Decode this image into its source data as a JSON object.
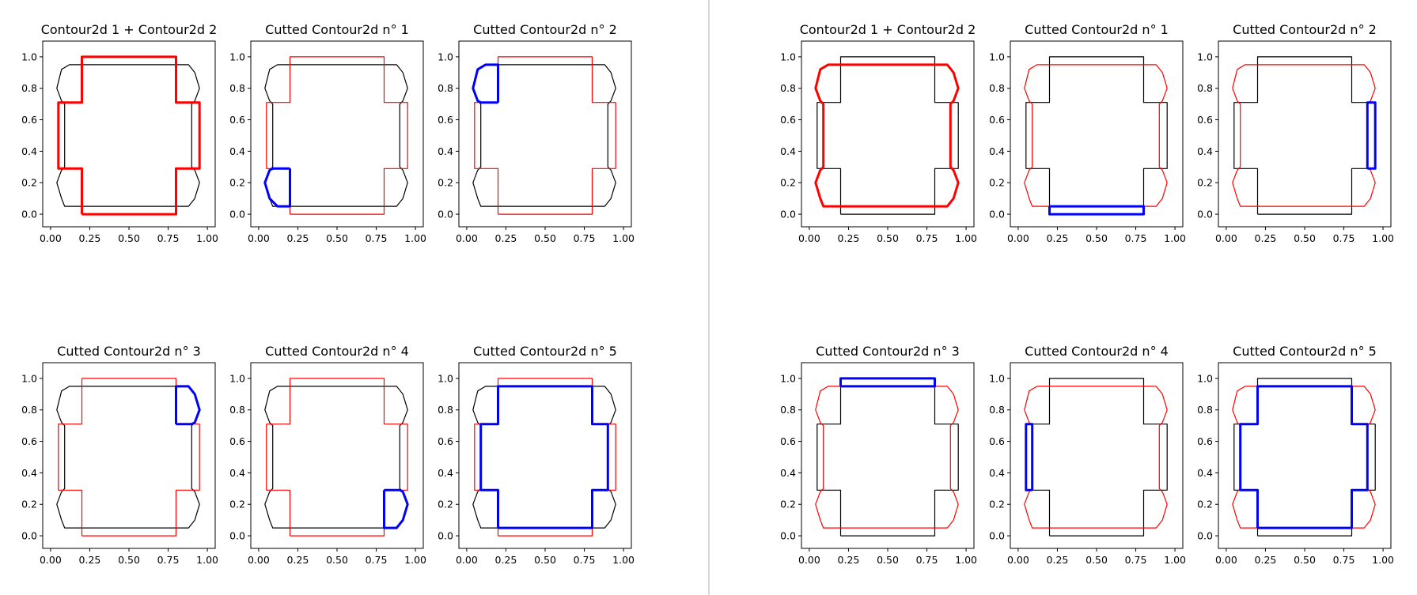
{
  "colors": {
    "contour_first": "#000000",
    "contour_second": "#ff0000",
    "cut_piece": "#0000ff",
    "separator": "#c8c8c8",
    "axes_frame": "#000000"
  },
  "chart_data": {
    "type": "line",
    "layout": "two groups of six subplots (2 rows x 3 columns each), separated by a vertical divider",
    "xlim": [
      -0.05,
      1.05
    ],
    "ylim": [
      -0.08,
      1.1
    ],
    "x_ticks": [
      "0.00",
      "0.25",
      "0.50",
      "0.75",
      "1.00"
    ],
    "y_ticks": [
      "0.0",
      "0.2",
      "0.4",
      "0.6",
      "0.8",
      "1.0"
    ],
    "contours": {
      "cross": [
        [
          0.2,
          0
        ],
        [
          0.8,
          0
        ],
        [
          0.8,
          0.29
        ],
        [
          0.95,
          0.29
        ],
        [
          0.95,
          0.71
        ],
        [
          0.8,
          0.71
        ],
        [
          0.8,
          1
        ],
        [
          0.2,
          1
        ],
        [
          0.2,
          0.71
        ],
        [
          0.05,
          0.71
        ],
        [
          0.05,
          0.29
        ],
        [
          0.2,
          0.29
        ],
        [
          0.2,
          0
        ]
      ],
      "octagon": [
        [
          0.12,
          0.05
        ],
        [
          0.88,
          0.05
        ],
        [
          0.92,
          0.1
        ],
        [
          0.95,
          0.2
        ],
        [
          0.92,
          0.28
        ],
        [
          0.9,
          0.3
        ],
        [
          0.9,
          0.7
        ],
        [
          0.92,
          0.72
        ],
        [
          0.95,
          0.8
        ],
        [
          0.92,
          0.9
        ],
        [
          0.88,
          0.95
        ],
        [
          0.12,
          0.95
        ],
        [
          0.07,
          0.92
        ],
        [
          0.04,
          0.8
        ],
        [
          0.07,
          0.72
        ],
        [
          0.09,
          0.7
        ],
        [
          0.09,
          0.3
        ],
        [
          0.07,
          0.28
        ],
        [
          0.04,
          0.2
        ],
        [
          0.07,
          0.1
        ],
        [
          0.09,
          0.05
        ],
        [
          0.12,
          0.05
        ]
      ]
    },
    "charts": [
      {
        "title": "Contour2d 1 + Contour2d 2",
        "black": "octagon",
        "red": "cross",
        "bold": "red",
        "blue": null
      },
      {
        "title": "Cutted Contour2d n° 1",
        "black": "octagon",
        "red": "cross",
        "bold": null,
        "blue": [
          [
            0.2,
            0.29
          ],
          [
            0.2,
            0.05
          ],
          [
            0.12,
            0.05
          ],
          [
            0.07,
            0.1
          ],
          [
            0.04,
            0.2
          ],
          [
            0.07,
            0.28
          ],
          [
            0.09,
            0.29
          ],
          [
            0.2,
            0.29
          ]
        ]
      },
      {
        "title": "Cutted Contour2d n° 2",
        "black": "octagon",
        "red": "cross",
        "bold": null,
        "blue": [
          [
            0.2,
            0.71
          ],
          [
            0.2,
            0.95
          ],
          [
            0.12,
            0.95
          ],
          [
            0.07,
            0.92
          ],
          [
            0.04,
            0.8
          ],
          [
            0.07,
            0.72
          ],
          [
            0.09,
            0.71
          ],
          [
            0.2,
            0.71
          ]
        ]
      },
      {
        "title": "Cutted Contour2d n° 3",
        "black": "octagon",
        "red": "cross",
        "bold": null,
        "blue": [
          [
            0.8,
            0.71
          ],
          [
            0.8,
            0.95
          ],
          [
            0.88,
            0.95
          ],
          [
            0.92,
            0.9
          ],
          [
            0.95,
            0.8
          ],
          [
            0.92,
            0.72
          ],
          [
            0.9,
            0.71
          ],
          [
            0.8,
            0.71
          ]
        ]
      },
      {
        "title": "Cutted Contour2d n° 4",
        "black": "octagon",
        "red": "cross",
        "bold": null,
        "blue": [
          [
            0.8,
            0.29
          ],
          [
            0.8,
            0.05
          ],
          [
            0.88,
            0.05
          ],
          [
            0.92,
            0.1
          ],
          [
            0.95,
            0.2
          ],
          [
            0.92,
            0.28
          ],
          [
            0.9,
            0.29
          ],
          [
            0.8,
            0.29
          ]
        ]
      },
      {
        "title": "Cutted Contour2d n° 5",
        "black": "octagon",
        "red": "cross",
        "bold": null,
        "blue": [
          [
            0.2,
            0.05
          ],
          [
            0.8,
            0.05
          ],
          [
            0.8,
            0.29
          ],
          [
            0.9,
            0.29
          ],
          [
            0.9,
            0.71
          ],
          [
            0.8,
            0.71
          ],
          [
            0.8,
            0.95
          ],
          [
            0.2,
            0.95
          ],
          [
            0.2,
            0.71
          ],
          [
            0.09,
            0.71
          ],
          [
            0.09,
            0.29
          ],
          [
            0.2,
            0.29
          ],
          [
            0.2,
            0.05
          ]
        ]
      },
      {
        "title": "Contour2d 1 + Contour2d 2",
        "black": "cross",
        "red": "octagon",
        "bold": "red",
        "blue": null
      },
      {
        "title": "Cutted Contour2d n° 1",
        "black": "cross",
        "red": "octagon",
        "bold": null,
        "blue": [
          [
            0.2,
            0.05
          ],
          [
            0.8,
            0.05
          ],
          [
            0.8,
            0
          ],
          [
            0.2,
            0
          ],
          [
            0.2,
            0.05
          ]
        ]
      },
      {
        "title": "Cutted Contour2d n° 2",
        "black": "cross",
        "red": "octagon",
        "bold": null,
        "blue": [
          [
            0.9,
            0.29
          ],
          [
            0.95,
            0.29
          ],
          [
            0.95,
            0.71
          ],
          [
            0.9,
            0.71
          ],
          [
            0.9,
            0.29
          ]
        ]
      },
      {
        "title": "Cutted Contour2d n° 3",
        "black": "cross",
        "red": "octagon",
        "bold": null,
        "blue": [
          [
            0.2,
            0.95
          ],
          [
            0.8,
            0.95
          ],
          [
            0.8,
            1
          ],
          [
            0.2,
            1
          ],
          [
            0.2,
            0.95
          ]
        ]
      },
      {
        "title": "Cutted Contour2d n° 4",
        "black": "cross",
        "red": "octagon",
        "bold": null,
        "blue": [
          [
            0.09,
            0.29
          ],
          [
            0.05,
            0.29
          ],
          [
            0.05,
            0.71
          ],
          [
            0.09,
            0.71
          ],
          [
            0.09,
            0.29
          ]
        ]
      },
      {
        "title": "Cutted Contour2d n° 5",
        "black": "cross",
        "red": "octagon",
        "bold": null,
        "blue": [
          [
            0.2,
            0.05
          ],
          [
            0.8,
            0.05
          ],
          [
            0.8,
            0.29
          ],
          [
            0.9,
            0.29
          ],
          [
            0.9,
            0.71
          ],
          [
            0.8,
            0.71
          ],
          [
            0.8,
            0.95
          ],
          [
            0.2,
            0.95
          ],
          [
            0.2,
            0.71
          ],
          [
            0.09,
            0.71
          ],
          [
            0.09,
            0.29
          ],
          [
            0.2,
            0.29
          ],
          [
            0.2,
            0.05
          ]
        ]
      }
    ]
  }
}
